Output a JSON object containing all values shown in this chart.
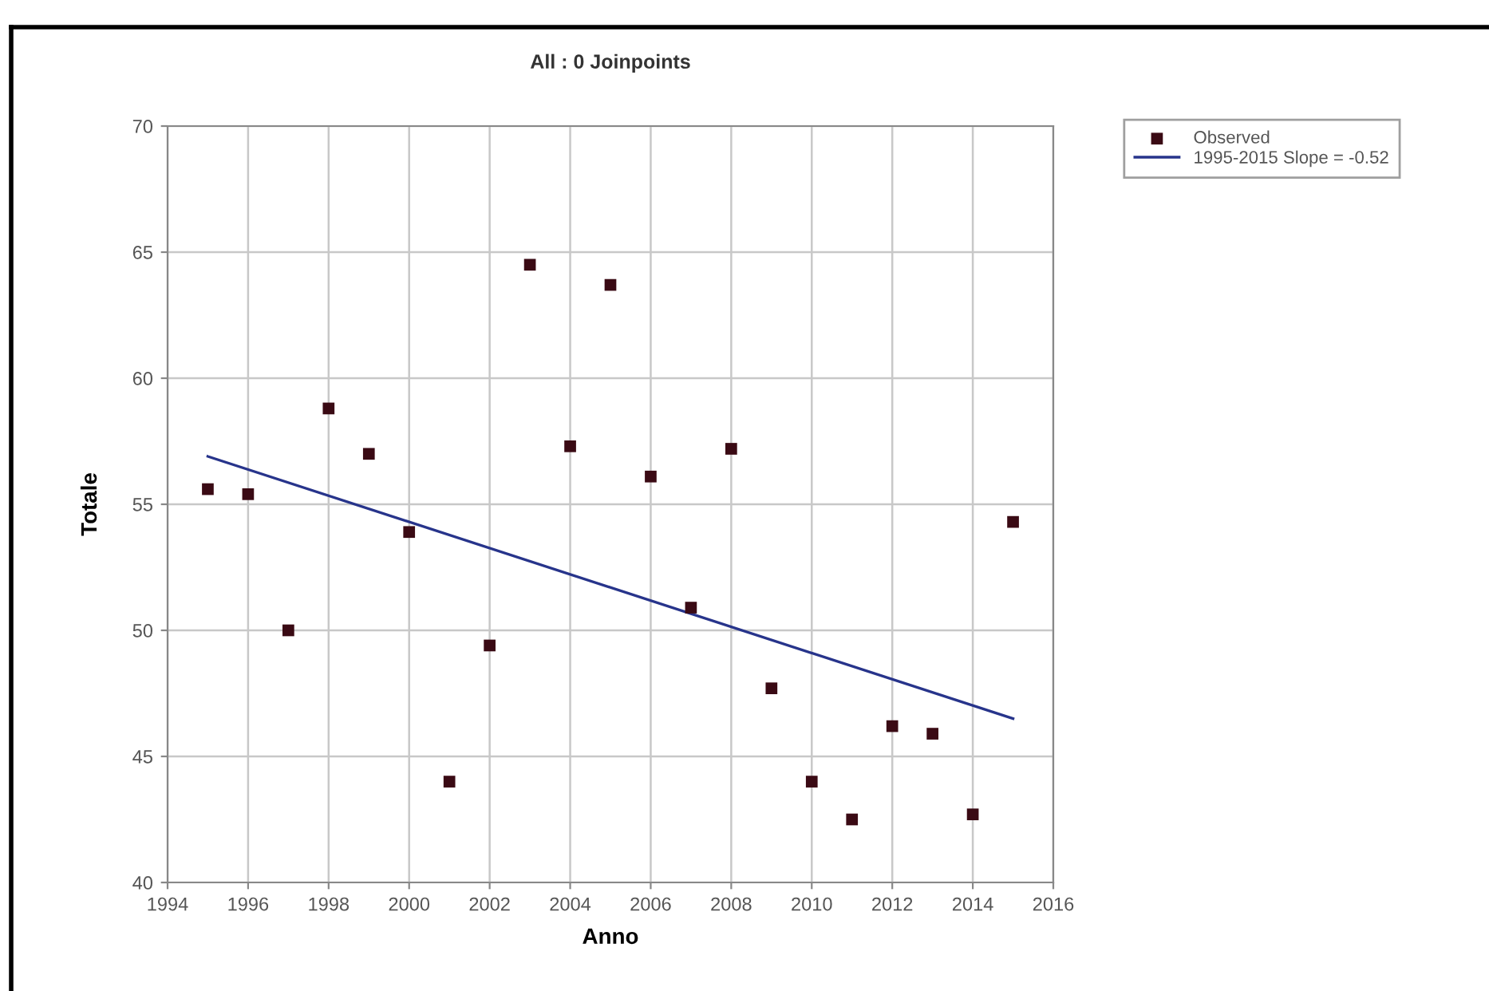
{
  "chart_data": {
    "type": "scatter",
    "title": "All : 0 Joinpoints",
    "xlabel": "Anno",
    "ylabel": "Totale",
    "series": [
      {
        "name": "Observed",
        "color": "#3a0a14",
        "marker": "square",
        "x": [
          1995,
          1996,
          1997,
          1998,
          1999,
          2000,
          2001,
          2002,
          2003,
          2004,
          2005,
          2006,
          2007,
          2008,
          2009,
          2010,
          2011,
          2012,
          2013,
          2014,
          2015
        ],
        "values": [
          55.6,
          55.4,
          50.0,
          58.8,
          57.0,
          53.9,
          44.0,
          49.4,
          64.5,
          57.3,
          63.7,
          56.1,
          50.9,
          57.2,
          47.7,
          44.0,
          42.5,
          46.2,
          45.9,
          42.7,
          54.3
        ]
      },
      {
        "name": "1995-2015 Slope = -0.52",
        "type": "line",
        "color": "#27348b",
        "marker": "none",
        "line_style": "solid",
        "x": [
          1995,
          2015
        ],
        "values": [
          56.9,
          46.5
        ]
      }
    ],
    "xlim": [
      1994,
      2016
    ],
    "xticks": [
      1994,
      1996,
      1998,
      2000,
      2002,
      2004,
      2006,
      2008,
      2010,
      2012,
      2014,
      2016
    ],
    "ylim": [
      40,
      70
    ],
    "yticks": [
      40,
      45,
      50,
      55,
      60,
      65,
      70
    ],
    "grid": true,
    "legend": "top right"
  }
}
